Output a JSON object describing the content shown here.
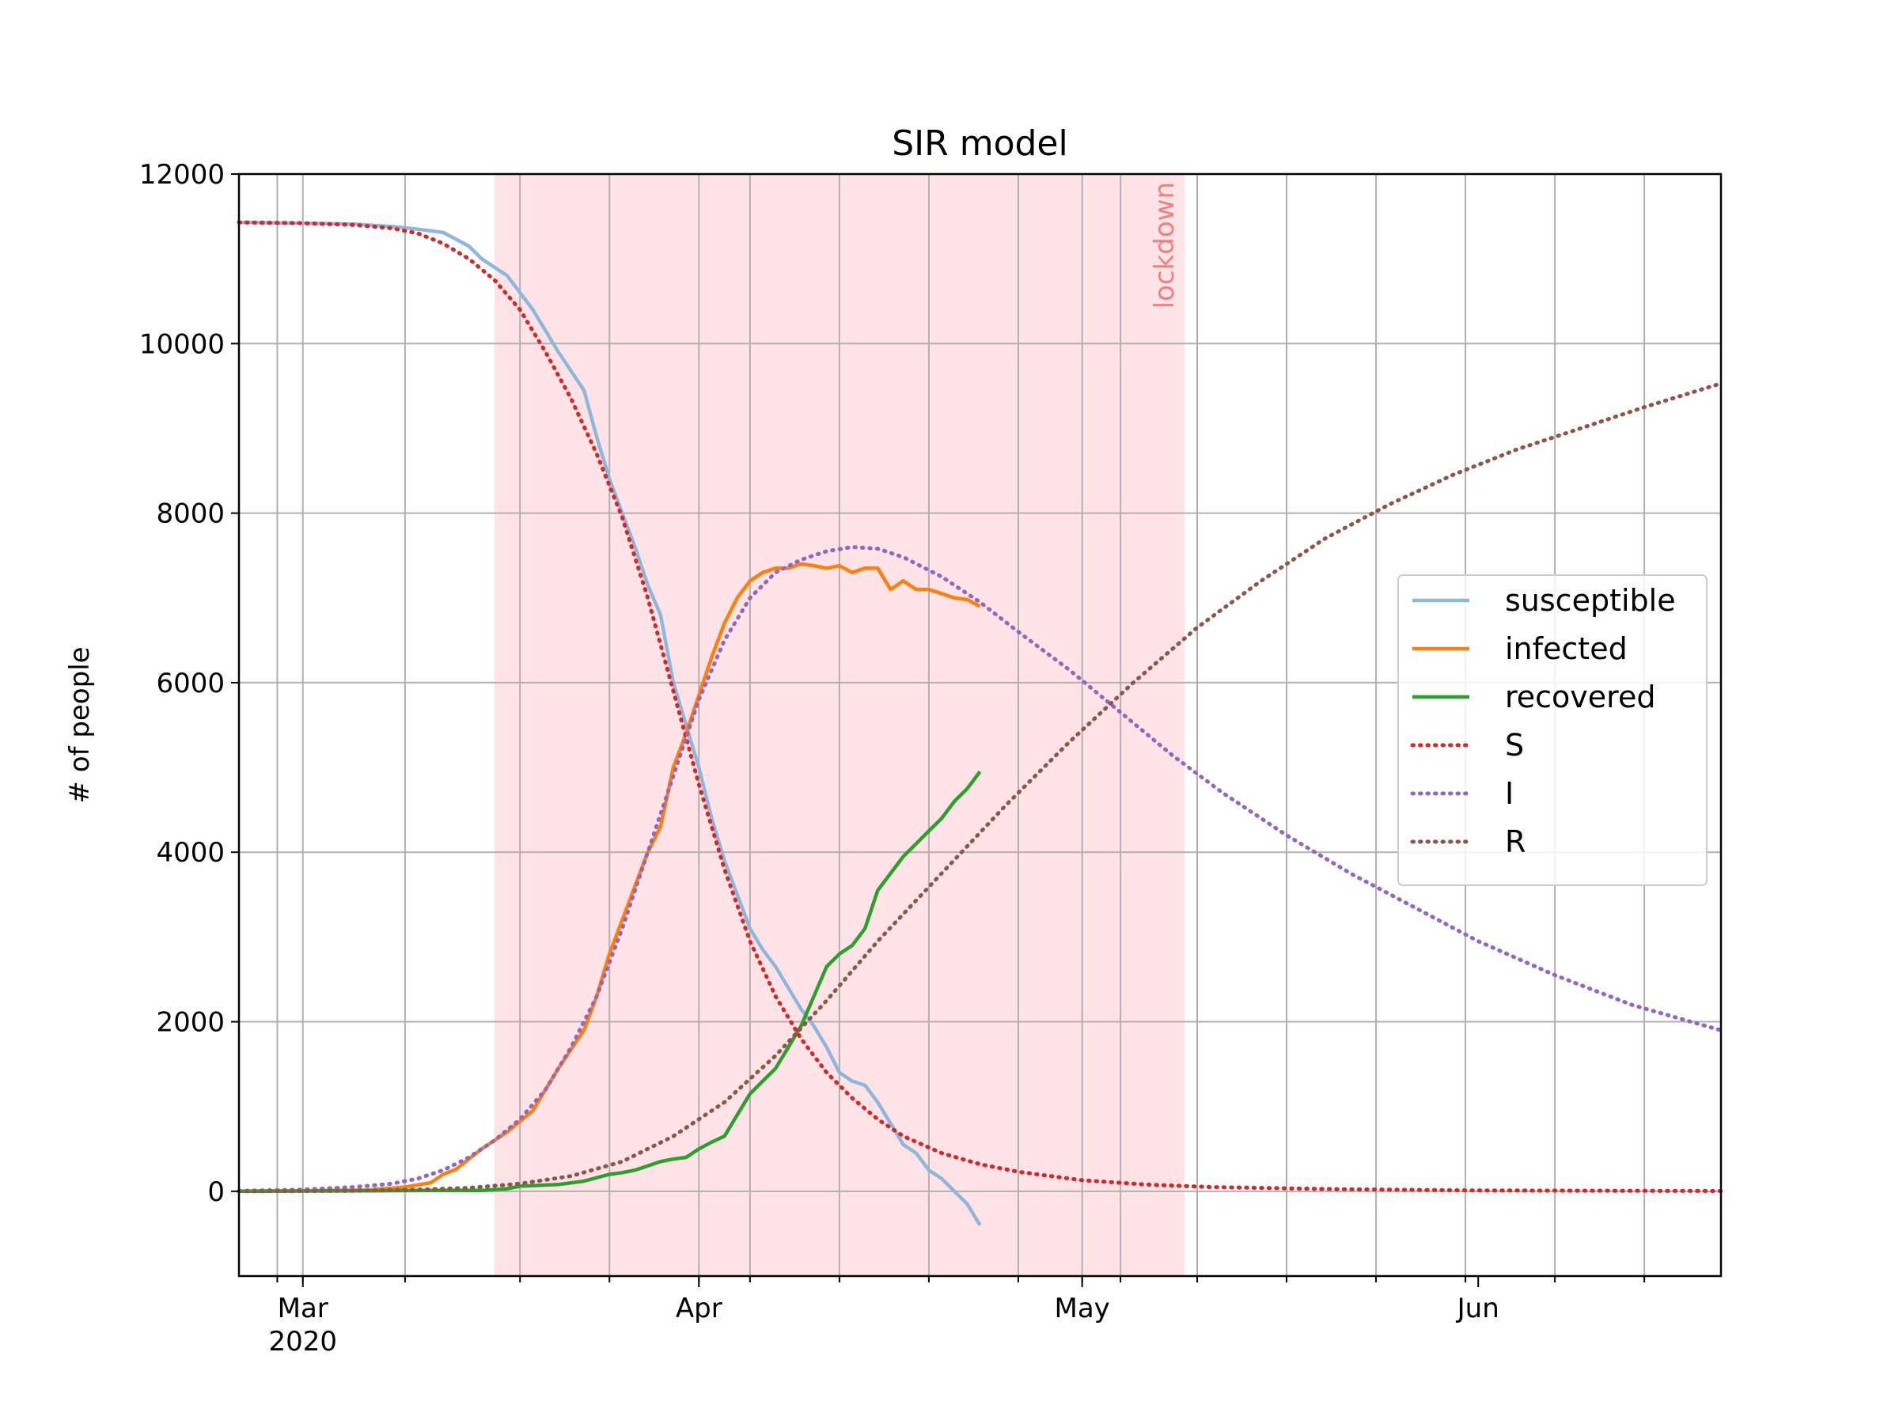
{
  "chart_data": {
    "type": "line",
    "title": "SIR model",
    "xlabel": "",
    "ylabel": "# of people",
    "ylim": [
      -1000,
      12000
    ],
    "xlim": [
      "2020-02-25",
      "2020-06-20"
    ],
    "y_ticks": [
      0,
      2000,
      4000,
      6000,
      8000,
      10000,
      12000
    ],
    "x_ticks": [
      {
        "date": "2020-03-01",
        "label": "Mar",
        "sublabel": "2020"
      },
      {
        "date": "2020-04-01",
        "label": "Apr",
        "sublabel": ""
      },
      {
        "date": "2020-05-01",
        "label": "May",
        "sublabel": ""
      },
      {
        "date": "2020-06-01",
        "label": "Jun",
        "sublabel": ""
      }
    ],
    "x_gridlines": [
      "2020-02-28",
      "2020-03-01",
      "2020-03-09",
      "2020-03-18",
      "2020-03-25",
      "2020-04-01",
      "2020-04-05",
      "2020-04-12",
      "2020-04-19",
      "2020-04-26",
      "2020-05-01",
      "2020-05-04",
      "2020-05-10",
      "2020-05-17",
      "2020-05-24",
      "2020-05-31",
      "2020-06-07",
      "2020-06-14"
    ],
    "grid": true,
    "legend_position": "center-right",
    "shaded_region": {
      "label": "lockdown",
      "x_start": "2020-03-16",
      "x_end": "2020-05-09",
      "color": "#ffe3e6",
      "label_color": "#f08080"
    },
    "series": [
      {
        "name": "susceptible",
        "style": "solid",
        "color": "#8fb7da",
        "points": [
          [
            "2020-02-25",
            11430
          ],
          [
            "2020-03-01",
            11420
          ],
          [
            "2020-03-05",
            11410
          ],
          [
            "2020-03-08",
            11380
          ],
          [
            "2020-03-10",
            11350
          ],
          [
            "2020-03-12",
            11310
          ],
          [
            "2020-03-14",
            11150
          ],
          [
            "2020-03-15",
            11000
          ],
          [
            "2020-03-17",
            10800
          ],
          [
            "2020-03-19",
            10400
          ],
          [
            "2020-03-21",
            9900
          ],
          [
            "2020-03-23",
            9450
          ],
          [
            "2020-03-24",
            8900
          ],
          [
            "2020-03-25",
            8400
          ],
          [
            "2020-03-26",
            8000
          ],
          [
            "2020-03-27",
            7600
          ],
          [
            "2020-03-28",
            7150
          ],
          [
            "2020-03-29",
            6800
          ],
          [
            "2020-03-30",
            6000
          ],
          [
            "2020-03-31",
            5500
          ],
          [
            "2020-04-01",
            5000
          ],
          [
            "2020-04-02",
            4400
          ],
          [
            "2020-04-03",
            3900
          ],
          [
            "2020-04-04",
            3500
          ],
          [
            "2020-04-05",
            3100
          ],
          [
            "2020-04-06",
            2850
          ],
          [
            "2020-04-07",
            2650
          ],
          [
            "2020-04-08",
            2400
          ],
          [
            "2020-04-09",
            2150
          ],
          [
            "2020-04-10",
            1950
          ],
          [
            "2020-04-11",
            1700
          ],
          [
            "2020-04-12",
            1400
          ],
          [
            "2020-04-13",
            1300
          ],
          [
            "2020-04-14",
            1250
          ],
          [
            "2020-04-15",
            1050
          ],
          [
            "2020-04-16",
            800
          ],
          [
            "2020-04-17",
            550
          ],
          [
            "2020-04-18",
            450
          ],
          [
            "2020-04-19",
            250
          ],
          [
            "2020-04-20",
            150
          ],
          [
            "2020-04-21",
            0
          ],
          [
            "2020-04-22",
            -150
          ],
          [
            "2020-04-23",
            -400
          ]
        ]
      },
      {
        "name": "infected",
        "style": "solid",
        "color": "#ff7f0e",
        "points": [
          [
            "2020-02-25",
            0
          ],
          [
            "2020-03-01",
            5
          ],
          [
            "2020-03-06",
            15
          ],
          [
            "2020-03-09",
            50
          ],
          [
            "2020-03-11",
            100
          ],
          [
            "2020-03-12",
            200
          ],
          [
            "2020-03-13",
            260
          ],
          [
            "2020-03-14",
            380
          ],
          [
            "2020-03-15",
            500
          ],
          [
            "2020-03-17",
            700
          ],
          [
            "2020-03-19",
            950
          ],
          [
            "2020-03-20",
            1200
          ],
          [
            "2020-03-21",
            1450
          ],
          [
            "2020-03-23",
            1900
          ],
          [
            "2020-03-24",
            2300
          ],
          [
            "2020-03-25",
            2800
          ],
          [
            "2020-03-26",
            3200
          ],
          [
            "2020-03-27",
            3600
          ],
          [
            "2020-03-28",
            4000
          ],
          [
            "2020-03-29",
            4300
          ],
          [
            "2020-03-30",
            5000
          ],
          [
            "2020-03-31",
            5400
          ],
          [
            "2020-04-01",
            5850
          ],
          [
            "2020-04-02",
            6300
          ],
          [
            "2020-04-03",
            6700
          ],
          [
            "2020-04-04",
            7000
          ],
          [
            "2020-04-05",
            7200
          ],
          [
            "2020-04-06",
            7300
          ],
          [
            "2020-04-07",
            7350
          ],
          [
            "2020-04-08",
            7350
          ],
          [
            "2020-04-09",
            7400
          ],
          [
            "2020-04-10",
            7380
          ],
          [
            "2020-04-11",
            7350
          ],
          [
            "2020-04-12",
            7380
          ],
          [
            "2020-04-13",
            7300
          ],
          [
            "2020-04-14",
            7350
          ],
          [
            "2020-04-15",
            7350
          ],
          [
            "2020-04-16",
            7100
          ],
          [
            "2020-04-17",
            7200
          ],
          [
            "2020-04-18",
            7100
          ],
          [
            "2020-04-19",
            7100
          ],
          [
            "2020-04-20",
            7050
          ],
          [
            "2020-04-21",
            7000
          ],
          [
            "2020-04-22",
            6980
          ],
          [
            "2020-04-23",
            6900
          ]
        ]
      },
      {
        "name": "recovered",
        "style": "solid",
        "color": "#2ca02c",
        "points": [
          [
            "2020-02-25",
            0
          ],
          [
            "2020-03-11",
            10
          ],
          [
            "2020-03-15",
            10
          ],
          [
            "2020-03-17",
            30
          ],
          [
            "2020-03-18",
            60
          ],
          [
            "2020-03-21",
            80
          ],
          [
            "2020-03-23",
            120
          ],
          [
            "2020-03-24",
            160
          ],
          [
            "2020-03-25",
            200
          ],
          [
            "2020-03-26",
            220
          ],
          [
            "2020-03-27",
            250
          ],
          [
            "2020-03-28",
            300
          ],
          [
            "2020-03-29",
            350
          ],
          [
            "2020-03-30",
            380
          ],
          [
            "2020-03-31",
            400
          ],
          [
            "2020-04-01",
            500
          ],
          [
            "2020-04-02",
            580
          ],
          [
            "2020-04-03",
            650
          ],
          [
            "2020-04-04",
            900
          ],
          [
            "2020-04-05",
            1150
          ],
          [
            "2020-04-06",
            1300
          ],
          [
            "2020-04-07",
            1450
          ],
          [
            "2020-04-08",
            1700
          ],
          [
            "2020-04-09",
            1950
          ],
          [
            "2020-04-10",
            2300
          ],
          [
            "2020-04-11",
            2650
          ],
          [
            "2020-04-12",
            2800
          ],
          [
            "2020-04-13",
            2900
          ],
          [
            "2020-04-14",
            3100
          ],
          [
            "2020-04-15",
            3550
          ],
          [
            "2020-04-16",
            3750
          ],
          [
            "2020-04-17",
            3950
          ],
          [
            "2020-04-18",
            4100
          ],
          [
            "2020-04-19",
            4250
          ],
          [
            "2020-04-20",
            4400
          ],
          [
            "2020-04-21",
            4600
          ],
          [
            "2020-04-22",
            4750
          ],
          [
            "2020-04-23",
            4950
          ]
        ]
      },
      {
        "name": "S",
        "style": "dotted",
        "color": "#d62728",
        "points": [
          [
            "2020-02-25",
            11430
          ],
          [
            "2020-03-01",
            11420
          ],
          [
            "2020-03-05",
            11400
          ],
          [
            "2020-03-08",
            11360
          ],
          [
            "2020-03-10",
            11300
          ],
          [
            "2020-03-12",
            11180
          ],
          [
            "2020-03-14",
            11000
          ],
          [
            "2020-03-16",
            10750
          ],
          [
            "2020-03-18",
            10400
          ],
          [
            "2020-03-20",
            9900
          ],
          [
            "2020-03-22",
            9350
          ],
          [
            "2020-03-24",
            8700
          ],
          [
            "2020-03-26",
            7950
          ],
          [
            "2020-03-28",
            7000
          ],
          [
            "2020-03-30",
            5900
          ],
          [
            "2020-04-01",
            4800
          ],
          [
            "2020-04-03",
            3800
          ],
          [
            "2020-04-05",
            2950
          ],
          [
            "2020-04-07",
            2300
          ],
          [
            "2020-04-09",
            1800
          ],
          [
            "2020-04-11",
            1400
          ],
          [
            "2020-04-13",
            1100
          ],
          [
            "2020-04-15",
            850
          ],
          [
            "2020-04-17",
            650
          ],
          [
            "2020-04-20",
            450
          ],
          [
            "2020-04-23",
            320
          ],
          [
            "2020-04-26",
            230
          ],
          [
            "2020-05-01",
            130
          ],
          [
            "2020-05-06",
            80
          ],
          [
            "2020-05-11",
            50
          ],
          [
            "2020-05-21",
            25
          ],
          [
            "2020-06-01",
            10
          ],
          [
            "2020-06-20",
            3
          ]
        ]
      },
      {
        "name": "I",
        "style": "dotted",
        "color": "#9467bd",
        "points": [
          [
            "2020-02-25",
            5
          ],
          [
            "2020-03-01",
            20
          ],
          [
            "2020-03-05",
            50
          ],
          [
            "2020-03-08",
            90
          ],
          [
            "2020-03-10",
            150
          ],
          [
            "2020-03-12",
            250
          ],
          [
            "2020-03-14",
            400
          ],
          [
            "2020-03-16",
            600
          ],
          [
            "2020-03-18",
            850
          ],
          [
            "2020-03-20",
            1200
          ],
          [
            "2020-03-22",
            1700
          ],
          [
            "2020-03-24",
            2300
          ],
          [
            "2020-03-26",
            3100
          ],
          [
            "2020-03-28",
            4000
          ],
          [
            "2020-03-30",
            4900
          ],
          [
            "2020-04-01",
            5800
          ],
          [
            "2020-04-03",
            6500
          ],
          [
            "2020-04-05",
            7000
          ],
          [
            "2020-04-07",
            7300
          ],
          [
            "2020-04-09",
            7450
          ],
          [
            "2020-04-11",
            7550
          ],
          [
            "2020-04-13",
            7600
          ],
          [
            "2020-04-15",
            7580
          ],
          [
            "2020-04-17",
            7480
          ],
          [
            "2020-04-20",
            7250
          ],
          [
            "2020-04-23",
            6950
          ],
          [
            "2020-04-26",
            6600
          ],
          [
            "2020-04-30",
            6150
          ],
          [
            "2020-05-04",
            5650
          ],
          [
            "2020-05-08",
            5150
          ],
          [
            "2020-05-12",
            4700
          ],
          [
            "2020-05-17",
            4200
          ],
          [
            "2020-05-22",
            3750
          ],
          [
            "2020-05-27",
            3350
          ],
          [
            "2020-06-01",
            2950
          ],
          [
            "2020-06-07",
            2550
          ],
          [
            "2020-06-13",
            2200
          ],
          [
            "2020-06-20",
            1900
          ]
        ]
      },
      {
        "name": "R",
        "style": "dotted",
        "color": "#8c564b",
        "points": [
          [
            "2020-02-25",
            0
          ],
          [
            "2020-03-05",
            5
          ],
          [
            "2020-03-10",
            20
          ],
          [
            "2020-03-14",
            40
          ],
          [
            "2020-03-18",
            90
          ],
          [
            "2020-03-22",
            180
          ],
          [
            "2020-03-26",
            350
          ],
          [
            "2020-03-30",
            650
          ],
          [
            "2020-04-03",
            1050
          ],
          [
            "2020-04-07",
            1600
          ],
          [
            "2020-04-11",
            2250
          ],
          [
            "2020-04-15",
            2950
          ],
          [
            "2020-04-20",
            3750
          ],
          [
            "2020-04-25",
            4550
          ],
          [
            "2020-04-30",
            5300
          ],
          [
            "2020-05-05",
            6000
          ],
          [
            "2020-05-10",
            6650
          ],
          [
            "2020-05-15",
            7200
          ],
          [
            "2020-05-20",
            7700
          ],
          [
            "2020-05-25",
            8100
          ],
          [
            "2020-05-30",
            8450
          ],
          [
            "2020-06-04",
            8750
          ],
          [
            "2020-06-09",
            9000
          ],
          [
            "2020-06-14",
            9250
          ],
          [
            "2020-06-20",
            9530
          ]
        ]
      }
    ]
  }
}
